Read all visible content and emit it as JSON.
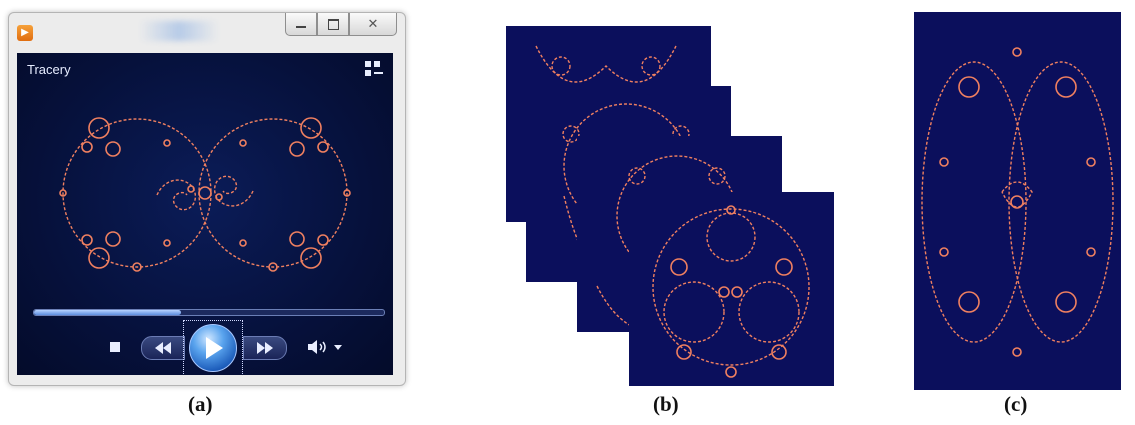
{
  "player": {
    "track_title": "Tracery",
    "progress": 0.42,
    "icons": {
      "app": "media-player-icon",
      "switch_view": "switch-to-library-icon",
      "minimize": "minimize-icon",
      "maximize": "maximize-icon",
      "close": "close-icon",
      "stop": "stop-icon",
      "previous": "previous-icon",
      "play": "play-icon",
      "next": "next-icon",
      "volume": "volume-icon"
    }
  },
  "captions": {
    "a": "(a)",
    "b": "(b)",
    "c": "(c)"
  },
  "colors": {
    "fractal_stroke": "#f08060",
    "frame_bg": "#0b0f5c"
  }
}
